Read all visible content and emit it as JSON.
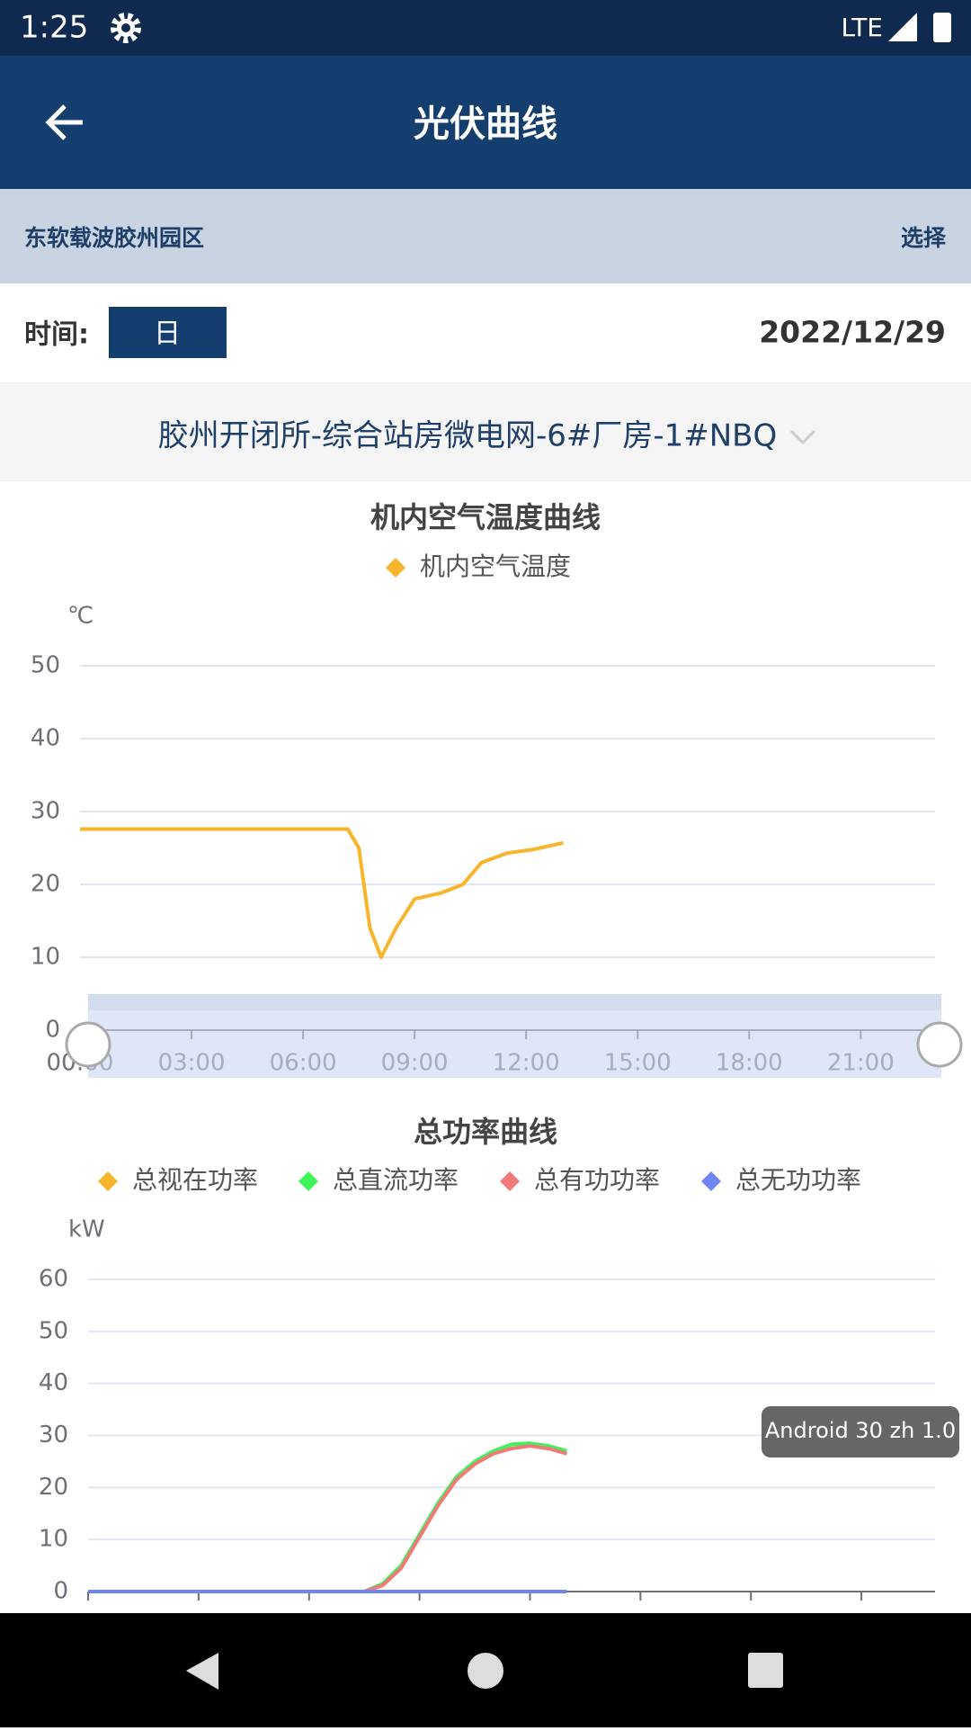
{
  "status": {
    "time": "1:25",
    "network": "LTE"
  },
  "header": {
    "title": "光伏曲线"
  },
  "site": {
    "name": "东软载波胶州园区",
    "action": "选择"
  },
  "time_row": {
    "label": "时间:",
    "mode": "日",
    "date": "2022/12/29"
  },
  "device": "胶州开闭所-综合站房微电网-6#厂房-1#NBQ",
  "toast": "Android 30 zh 1.0",
  "chart_data": [
    {
      "type": "line",
      "title": "机内空气温度曲线",
      "y_label": "℃",
      "x": [
        0,
        3,
        6,
        7.2,
        7.5,
        7.8,
        8.1,
        8.5,
        9,
        9.7,
        10.3,
        10.8,
        11.5,
        12.2,
        13
      ],
      "series": [
        {
          "name": "机内空气温度",
          "color": "#f7b52c",
          "values": [
            27.6,
            27.6,
            27.6,
            27.6,
            25,
            14,
            10,
            14,
            18,
            18.8,
            20,
            23,
            24.3,
            24.8,
            25.7
          ]
        }
      ],
      "xlim": [
        0,
        23
      ],
      "xticks": [
        {
          "value": 0,
          "label": "00:00"
        },
        {
          "value": 3,
          "label": "03:00"
        },
        {
          "value": 6,
          "label": "06:00"
        },
        {
          "value": 9,
          "label": "09:00"
        },
        {
          "value": 12,
          "label": "12:00"
        },
        {
          "value": 15,
          "label": "15:00"
        },
        {
          "value": 18,
          "label": "18:00"
        },
        {
          "value": 21,
          "label": "21:00"
        }
      ],
      "ylim": [
        0,
        50
      ],
      "yticks": [
        0,
        10,
        20,
        30,
        40,
        50
      ],
      "grid": true
    },
    {
      "type": "line",
      "title": "总功率曲线",
      "y_label": "kW",
      "x": [
        0,
        2,
        4,
        6,
        7.5,
        8,
        8.5,
        9,
        9.5,
        10,
        10.5,
        11,
        11.5,
        12,
        12.5,
        13
      ],
      "series": [
        {
          "name": "总视在功率",
          "color": "#f7b52c",
          "values": [
            0,
            0,
            0,
            0,
            0,
            1.2,
            4.5,
            10.5,
            16.5,
            21.5,
            24.5,
            26.5,
            27.5,
            28,
            27.5,
            26.5
          ]
        },
        {
          "name": "总直流功率",
          "color": "#3df55a",
          "values": [
            0,
            0,
            0,
            0,
            0,
            1.5,
            5,
            11,
            17,
            22,
            25,
            27,
            28.3,
            28.5,
            28,
            27
          ]
        },
        {
          "name": "总有功功率",
          "color": "#f07a7a",
          "values": [
            0,
            0,
            0,
            0,
            0,
            1.2,
            4.5,
            10.5,
            16.5,
            21.5,
            24.5,
            26.5,
            27.5,
            28,
            27.5,
            26.5
          ]
        },
        {
          "name": "总无功功率",
          "color": "#6f86f2",
          "values": [
            0,
            0,
            0,
            0,
            0,
            0,
            0,
            0,
            0,
            0,
            0,
            0,
            0,
            0,
            0,
            0
          ]
        }
      ],
      "xlim": [
        0,
        23
      ],
      "xticks": [
        0,
        3,
        6,
        9,
        12,
        15,
        18,
        21
      ],
      "ylim": [
        0,
        60
      ],
      "yticks": [
        0,
        10,
        20,
        30,
        40,
        50,
        60
      ],
      "grid": true
    }
  ]
}
